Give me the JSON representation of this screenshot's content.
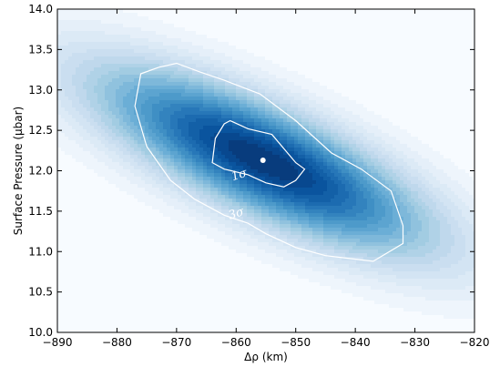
{
  "chart_data": {
    "type": "heatmap",
    "title": "",
    "xlabel": "Δρ (km)",
    "ylabel": "Surface Pressure (μbar)",
    "xlim": [
      -890,
      -820
    ],
    "ylim": [
      10.0,
      14.0
    ],
    "x_ticks": [
      -890,
      -880,
      -870,
      -860,
      -850,
      -840,
      -830,
      -820
    ],
    "x_tick_labels": [
      "−890",
      "−880",
      "−870",
      "−860",
      "−850",
      "−840",
      "−830",
      "−820"
    ],
    "y_ticks": [
      10.0,
      10.5,
      11.0,
      11.5,
      12.0,
      12.5,
      13.0,
      13.5,
      14.0
    ],
    "y_tick_labels": [
      "10.0",
      "10.5",
      "11.0",
      "11.5",
      "12.0",
      "12.5",
      "13.0",
      "13.5",
      "14.0"
    ],
    "colormap": [
      "#f7fbff",
      "#deebf7",
      "#c6dbef",
      "#9ecae1",
      "#6baed6",
      "#4292c6",
      "#2171b5",
      "#08519c",
      "#08306b"
    ],
    "contour_color": "#ffffff",
    "best_fit": {
      "x": -855.5,
      "y": 12.13
    },
    "contours": [
      {
        "label": "1σ",
        "label_at": {
          "x": -859.5,
          "y": 11.95
        },
        "points": [
          [
            -864,
            12.1
          ],
          [
            -863.5,
            12.4
          ],
          [
            -862,
            12.58
          ],
          [
            -861,
            12.62
          ],
          [
            -858,
            12.52
          ],
          [
            -854,
            12.45
          ],
          [
            -850,
            12.1
          ],
          [
            -848.5,
            12.02
          ],
          [
            -850,
            11.88
          ],
          [
            -852,
            11.8
          ],
          [
            -855,
            11.85
          ],
          [
            -858,
            11.95
          ],
          [
            -862,
            12.02
          ]
        ]
      },
      {
        "label": "3σ",
        "label_at": {
          "x": -860,
          "y": 11.47
        },
        "points": [
          [
            -877,
            12.8
          ],
          [
            -876,
            13.2
          ],
          [
            -873,
            13.28
          ],
          [
            -870,
            13.33
          ],
          [
            -866,
            13.22
          ],
          [
            -862,
            13.12
          ],
          [
            -856,
            12.95
          ],
          [
            -850,
            12.62
          ],
          [
            -844,
            12.22
          ],
          [
            -839,
            12.02
          ],
          [
            -834,
            11.75
          ],
          [
            -832,
            11.32
          ],
          [
            -832,
            11.1
          ],
          [
            -837,
            10.88
          ],
          [
            -845,
            10.95
          ],
          [
            -850,
            11.05
          ],
          [
            -855,
            11.22
          ],
          [
            -858,
            11.35
          ],
          [
            -862,
            11.45
          ],
          [
            -867,
            11.65
          ],
          [
            -871,
            11.88
          ],
          [
            -875,
            12.3
          ]
        ]
      }
    ]
  }
}
